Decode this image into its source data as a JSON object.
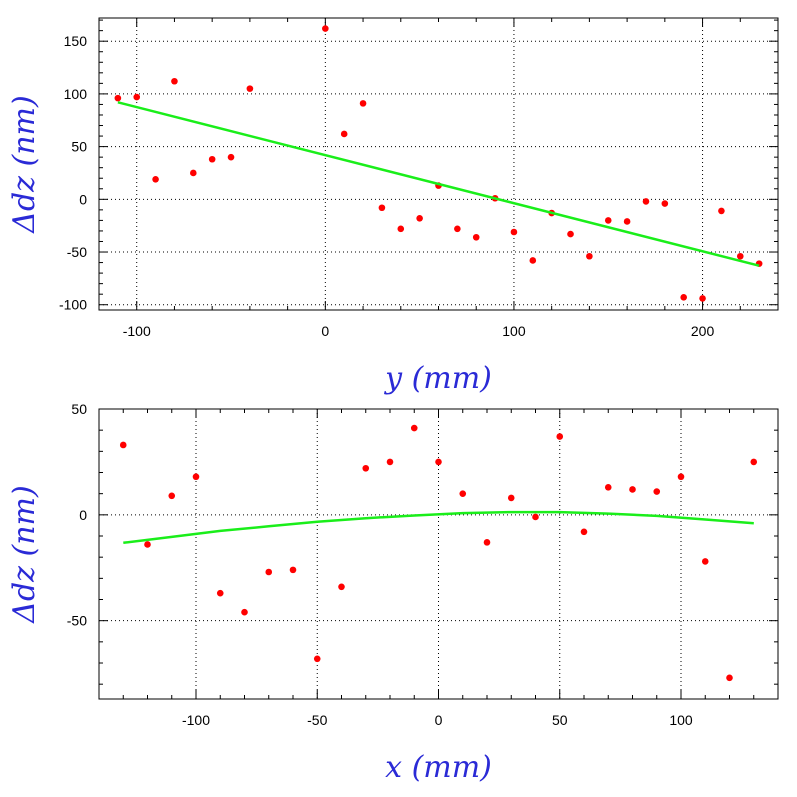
{
  "chart_data": [
    {
      "type": "scatter",
      "xlabel": "y (mm)",
      "ylabel": "Δdz (nm)",
      "xlim": [
        -120,
        240
      ],
      "ylim": [
        -105,
        172
      ],
      "xticks": [
        -100,
        0,
        100,
        200
      ],
      "xtick_labels": [
        "-100",
        "0",
        "100",
        "200"
      ],
      "yticks": [
        -100,
        -50,
        0,
        50,
        100,
        150
      ],
      "ytick_labels": [
        "-100",
        "-50",
        "0",
        "50",
        "100",
        "150"
      ],
      "grid": true,
      "colors": {
        "points": "#ff0000",
        "fit": "#1aee1a",
        "axis_title": "#2a2ad6"
      },
      "series": [
        {
          "kind": "points",
          "x": [
            -110,
            -100,
            -90,
            -80,
            -70,
            -60,
            -50,
            -40,
            0,
            10,
            20,
            30,
            40,
            50,
            60,
            70,
            80,
            90,
            100,
            110,
            120,
            130,
            140,
            150,
            160,
            170,
            180,
            190,
            200,
            210,
            220,
            230
          ],
          "y": [
            96,
            97,
            19,
            112,
            25,
            38,
            40,
            105,
            162,
            62,
            91,
            -8,
            -28,
            -18,
            13,
            -28,
            -36,
            1,
            -31,
            -58,
            -13,
            -33,
            -54,
            -20,
            -21,
            -2,
            -4,
            -93,
            -94,
            -11,
            -54,
            -61
          ]
        },
        {
          "kind": "fit",
          "x": [
            -110,
            230
          ],
          "y": [
            92,
            -63
          ]
        }
      ]
    },
    {
      "type": "scatter",
      "xlabel": "x (mm)",
      "ylabel": "Δdz (nm)",
      "xlim": [
        -140,
        140
      ],
      "ylim": [
        -87,
        50
      ],
      "xticks": [
        -100,
        -50,
        0,
        50,
        100
      ],
      "xtick_labels": [
        "-100",
        "-50",
        "0",
        "50",
        "100"
      ],
      "yticks": [
        -50,
        0,
        50
      ],
      "ytick_labels": [
        "-50",
        "0",
        "50"
      ],
      "grid": true,
      "colors": {
        "points": "#ff0000",
        "fit": "#1aee1a",
        "axis_title": "#2a2ad6"
      },
      "series": [
        {
          "kind": "points",
          "x": [
            -130,
            -120,
            -110,
            -100,
            -90,
            -80,
            -70,
            -60,
            -50,
            -40,
            -30,
            -20,
            -10,
            0,
            10,
            20,
            30,
            40,
            50,
            60,
            70,
            80,
            90,
            100,
            110,
            120,
            130
          ],
          "y": [
            33,
            -14,
            9,
            18,
            -37,
            -46,
            -27,
            -26,
            -68,
            -34,
            22,
            25,
            41,
            25,
            10,
            -13,
            8,
            -1,
            37,
            -8,
            13,
            12,
            11,
            18,
            -22,
            -77,
            25
          ]
        },
        {
          "kind": "fit",
          "x": [
            -130,
            -110,
            -90,
            -70,
            -50,
            -30,
            -10,
            10,
            30,
            50,
            70,
            90,
            110,
            130
          ],
          "y": [
            -13.2,
            -10.4,
            -7.6,
            -5.4,
            -3.3,
            -1.6,
            -0.3,
            0.8,
            1.3,
            1.3,
            0.6,
            -0.5,
            -2.2,
            -4.0
          ]
        }
      ]
    }
  ]
}
